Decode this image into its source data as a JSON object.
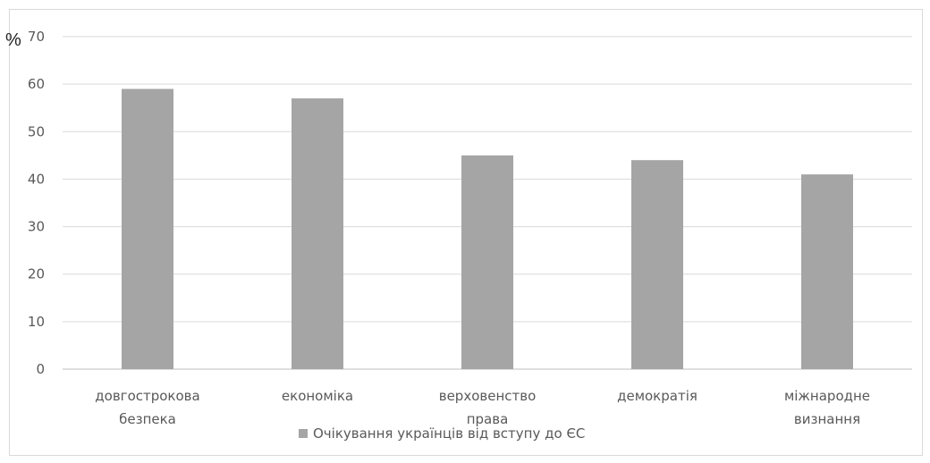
{
  "chart_data": {
    "type": "bar",
    "categories": [
      [
        "довгострокова",
        "безпека"
      ],
      [
        "економіка"
      ],
      [
        "верховенство",
        "права"
      ],
      [
        "демократія"
      ],
      [
        "міжнародне",
        "визнання"
      ]
    ],
    "series": [
      {
        "name": "Очікування українців від вступу до ЄС",
        "values": [
          59,
          57,
          45,
          44,
          41
        ],
        "color": "#a5a5a5"
      }
    ],
    "ylim": [
      0,
      70
    ],
    "yticks": [
      0,
      10,
      20,
      30,
      40,
      50,
      60,
      70
    ],
    "ylabel": "%",
    "grid": true,
    "legend": "bottom"
  }
}
